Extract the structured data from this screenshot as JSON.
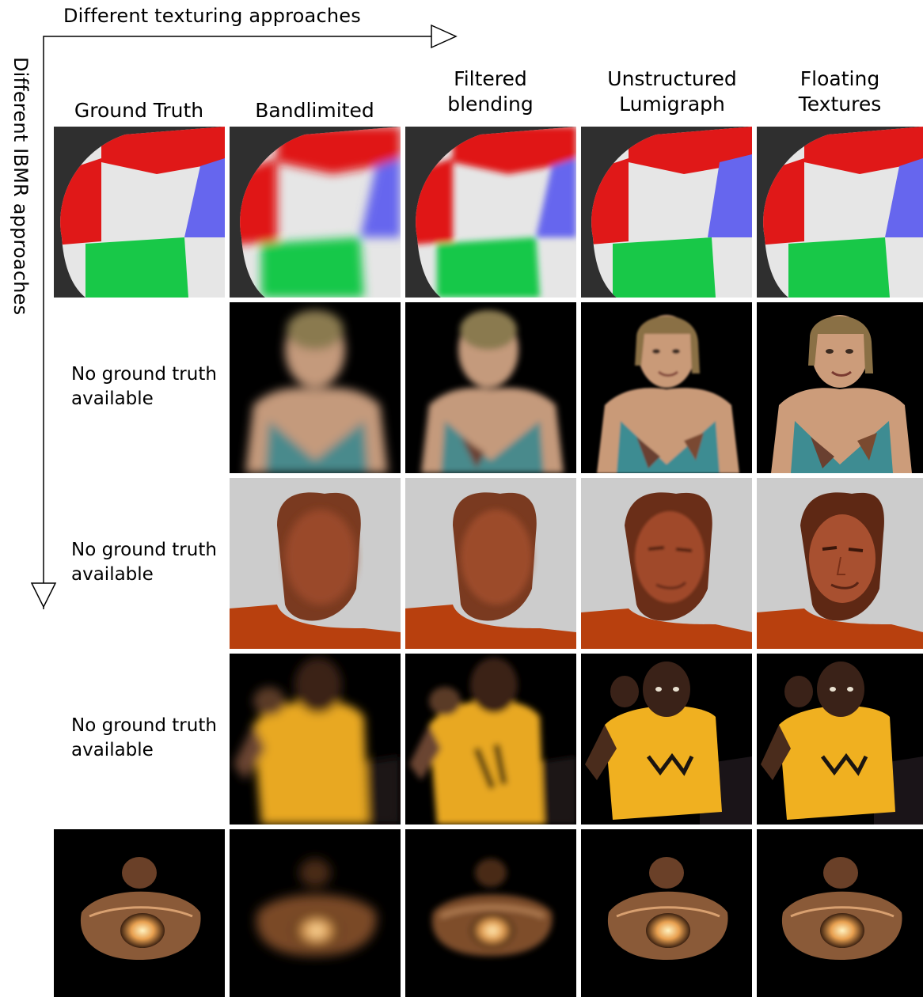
{
  "axes": {
    "horizontal_title": "Different texturing approaches",
    "vertical_title": "Different IBMR approaches"
  },
  "columns": [
    {
      "label": "Ground Truth"
    },
    {
      "label": "Bandlimited"
    },
    {
      "label": "Filtered\nblending"
    },
    {
      "label": "Unstructured\nLumigraph"
    },
    {
      "label": "Floating\nTextures"
    }
  ],
  "rows": [
    {
      "note": ""
    },
    {
      "note": "No ground truth\navailable"
    },
    {
      "note": "No ground truth\navailable"
    },
    {
      "note": "No ground truth\navailable"
    },
    {
      "note": ""
    }
  ]
}
